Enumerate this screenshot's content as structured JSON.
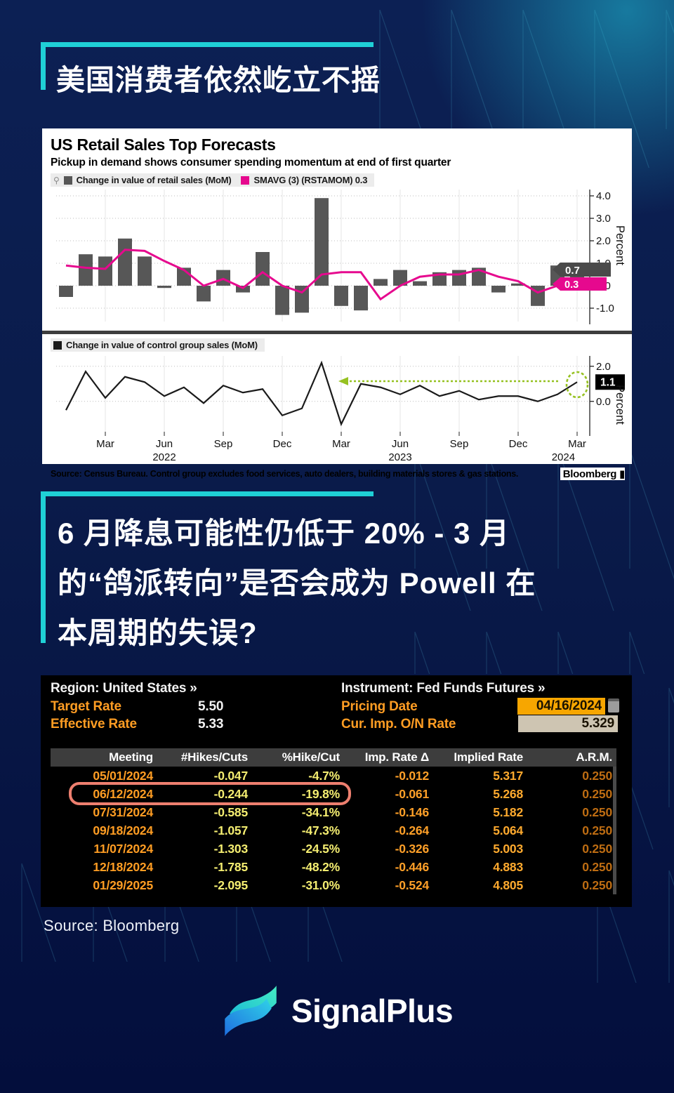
{
  "colors": {
    "accent_teal": "#1fd0d6",
    "bar_gray": "#575757",
    "smavg_magenta": "#e6098e",
    "control_line": "#1a1a1a",
    "annotation_green": "#96c121",
    "terminal_amber": "#ff9d23",
    "terminal_yellow": "#f5ee71",
    "terminal_dark_orange": "#bd6c12",
    "highlight_ring": "#ed7f6f",
    "date_field_bg": "#f7a600",
    "rate_field_bg": "#cec5b2"
  },
  "headline1": {
    "text": "美国消费者依然屹立不摇"
  },
  "headline2": {
    "lines": [
      "6 月降息可能性仍低于 20% - 3 月",
      "的“鸽派转向”是否会成为 Powell 在",
      "本周期的失误?"
    ]
  },
  "chart": {
    "title": "US Retail Sales Top Forecasts",
    "subtitle": "Pickup in demand shows consumer spending momentum at end of first quarter",
    "legend_pin": "⚲",
    "source": "Source: Census Bureau. Control group excludes food services, auto dealers, building materials stores & gas stations.",
    "brand": "Bloomberg ▮"
  },
  "chart_data": [
    {
      "type": "bar",
      "title": "US Retail Sales Top Forecasts",
      "subtitle": "Pickup in demand shows consumer spending momentum at end of first quarter",
      "x_range": "Jan 2022 – Mar 2024, monthly",
      "x_tick_labels": [
        "Mar",
        "Jun",
        "Sep",
        "Dec",
        "Mar",
        "Jun",
        "Sep",
        "Dec",
        "Mar"
      ],
      "x_tick_indices": [
        2,
        5,
        8,
        11,
        14,
        17,
        20,
        23,
        26
      ],
      "year_labels": [
        {
          "text": "2022",
          "index": 5
        },
        {
          "text": "2023",
          "index": 17
        },
        {
          "text": "2024",
          "index": 25.3
        }
      ],
      "ylabel": "Percent",
      "ylim": [
        -1.6,
        4.3
      ],
      "yticks": [
        4.0,
        3.0,
        2.0,
        1.0,
        0.0,
        -1.0
      ],
      "grid": true,
      "legend_position": "top-left",
      "series": [
        {
          "name": "Change in value of retail sales (MoM)",
          "type": "bar",
          "color": "#575757",
          "last_label": "0.7",
          "values": [
            -0.5,
            1.4,
            1.3,
            2.1,
            1.3,
            -0.1,
            0.8,
            -0.7,
            0.7,
            -0.3,
            1.5,
            -1.3,
            -1.2,
            3.9,
            -0.9,
            -1.1,
            0.3,
            0.7,
            0.2,
            0.6,
            0.7,
            0.8,
            -0.3,
            0.1,
            -0.9,
            0.9,
            0.7
          ]
        },
        {
          "name": "SMAVG (3) (RSTAMOM) 0.3",
          "type": "line",
          "color": "#e6098e",
          "last_label": "0.3",
          "values": [
            0.9,
            0.8,
            0.75,
            1.6,
            1.55,
            1.1,
            0.7,
            0.0,
            0.3,
            -0.1,
            0.6,
            0.0,
            -0.3,
            0.5,
            0.6,
            0.6,
            -0.6,
            0.0,
            0.4,
            0.5,
            0.5,
            0.7,
            0.4,
            0.2,
            -0.3,
            0.0,
            0.3
          ]
        }
      ]
    },
    {
      "type": "line",
      "legend": "Change in value of control group sales (MoM)",
      "x_range": "Jan 2022 – Mar 2024, monthly",
      "x_tick_labels": [
        "Mar",
        "Jun",
        "Sep",
        "Dec",
        "Mar",
        "Jun",
        "Sep",
        "Dec",
        "Mar"
      ],
      "x_tick_indices": [
        2,
        5,
        8,
        11,
        14,
        17,
        20,
        23,
        26
      ],
      "year_labels": [
        {
          "text": "2022",
          "index": 5
        },
        {
          "text": "2023",
          "index": 17
        },
        {
          "text": "2024",
          "index": 25.3
        }
      ],
      "ylabel": "Percent",
      "ylim": [
        -1.7,
        2.5
      ],
      "yticks": [
        2.0,
        0.0
      ],
      "grid": true,
      "color": "#1a1a1a",
      "last_label": "1.1",
      "values": [
        -0.5,
        1.7,
        0.2,
        1.4,
        1.1,
        0.3,
        0.8,
        -0.1,
        0.9,
        0.5,
        0.7,
        -0.8,
        -0.4,
        2.2,
        -1.3,
        1.0,
        0.8,
        0.4,
        0.9,
        0.3,
        0.6,
        0.1,
        0.3,
        0.3,
        0.0,
        0.4,
        1.1
      ],
      "annotation": {
        "type": "dashed-arrow-and-circle",
        "color": "#96c121",
        "from_index": 14,
        "to_index": 26,
        "y": 1.15
      }
    }
  ],
  "terminal": {
    "region_label": "Region: United States »",
    "instrument_label": "Instrument: Fed Funds Futures »",
    "target_rate_label": "Target Rate",
    "target_rate_value": "5.50",
    "effective_rate_label": "Effective Rate",
    "effective_rate_value": "5.33",
    "pricing_date_label": "Pricing Date",
    "pricing_date_value": "04/16/2024",
    "on_rate_label": "Cur. Imp. O/N Rate",
    "on_rate_value": "5.329",
    "columns": [
      "Meeting",
      "#Hikes/Cuts",
      "%Hike/Cut",
      "Imp. Rate Δ",
      "Implied Rate",
      "A.R.M."
    ],
    "rows": [
      [
        "05/01/2024",
        "-0.047",
        "-4.7%",
        "-0.012",
        "5.317",
        "0.250"
      ],
      [
        "06/12/2024",
        "-0.244",
        "-19.8%",
        "-0.061",
        "5.268",
        "0.250"
      ],
      [
        "07/31/2024",
        "-0.585",
        "-34.1%",
        "-0.146",
        "5.182",
        "0.250"
      ],
      [
        "09/18/2024",
        "-1.057",
        "-47.3%",
        "-0.264",
        "5.064",
        "0.250"
      ],
      [
        "11/07/2024",
        "-1.303",
        "-24.5%",
        "-0.326",
        "5.003",
        "0.250"
      ],
      [
        "12/18/2024",
        "-1.785",
        "-48.2%",
        "-0.446",
        "4.883",
        "0.250"
      ],
      [
        "01/29/2025",
        "-2.095",
        "-31.0%",
        "-0.524",
        "4.805",
        "0.250"
      ]
    ],
    "highlighted_row_index": 1,
    "column_colors": [
      "#ff9d23",
      "#f5ee71",
      "#f5ee71",
      "#ffa028",
      "#ffaa2e",
      "#bd6c12"
    ]
  },
  "source_note": "Source: Bloomberg",
  "logo": {
    "text": "SignalPlus"
  }
}
